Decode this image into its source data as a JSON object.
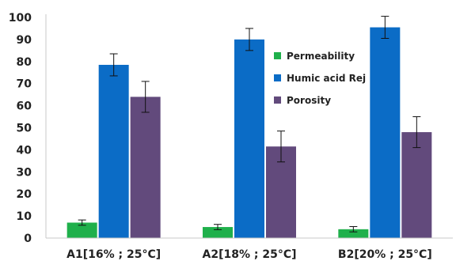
{
  "chart_data": {
    "type": "bar",
    "categories": [
      "A1[16% ; 25°C]",
      "A2[18% ; 25°C]",
      "B2[20% ; 25°C]"
    ],
    "series": [
      {
        "name": "Permeability",
        "values": [
          7,
          5,
          4
        ],
        "errors": [
          1.2,
          1.2,
          1.2
        ],
        "color": "#1fb04b"
      },
      {
        "name": "Humic acid Rej",
        "values": [
          78.5,
          90,
          95.5
        ],
        "errors": [
          5,
          5,
          5
        ],
        "color": "#0b6cc6"
      },
      {
        "name": "Porosity",
        "values": [
          64,
          41.5,
          48
        ],
        "errors": [
          7,
          7,
          7
        ],
        "color": "#624a7c"
      }
    ],
    "yticks": [
      0,
      10,
      20,
      30,
      40,
      50,
      60,
      70,
      80,
      90,
      100
    ],
    "ylim": [
      0,
      100
    ],
    "title": "",
    "xlabel": "",
    "ylabel": "",
    "legend_position": "top-center",
    "grid": false,
    "axis_color": "#c8c8c8"
  }
}
